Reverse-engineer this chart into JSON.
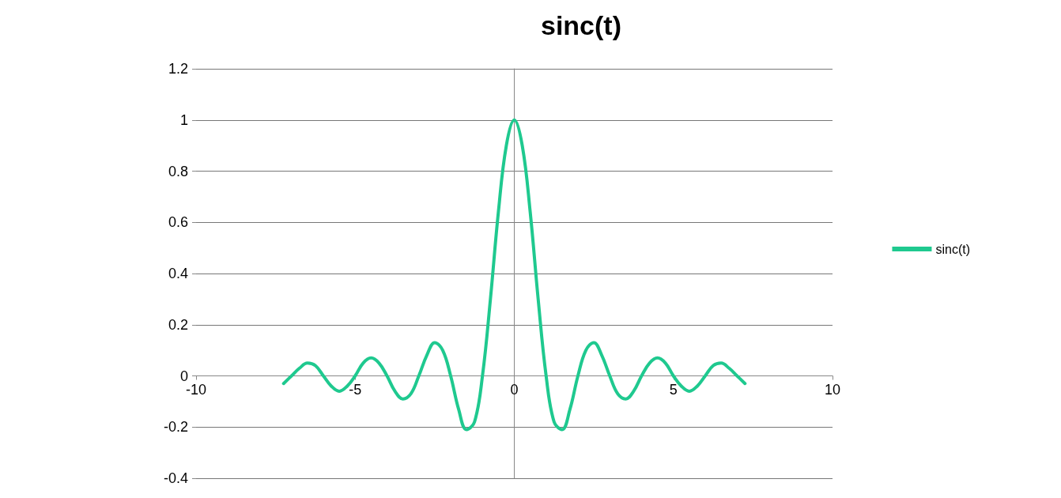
{
  "chart_data": {
    "type": "line",
    "title": "sinc(t)",
    "x": [
      -7.25,
      -7,
      -6.75,
      -6.5,
      -6.25,
      -6,
      -5.75,
      -5.5,
      -5.25,
      -5,
      -4.75,
      -4.5,
      -4.25,
      -4,
      -3.75,
      -3.5,
      -3.25,
      -3,
      -2.75,
      -2.5,
      -2.25,
      -2,
      -1.75,
      -1.5,
      -1.25,
      -1,
      -0.75,
      -0.5,
      -0.25,
      0,
      0.25,
      0.5,
      0.75,
      1,
      1.25,
      1.5,
      1.75,
      2,
      2.25,
      2.5,
      2.75,
      3,
      3.25,
      3.5,
      3.75,
      4,
      4.25,
      4.5,
      4.75,
      5,
      5.25,
      5.5,
      5.75,
      6,
      6.25,
      6.5,
      6.75,
      7,
      7.25
    ],
    "series": [
      {
        "name": "sinc(t)",
        "color": "#1fc98f",
        "values": [
          -0.03,
          0,
          0.03,
          0.05,
          0.04,
          0,
          -0.04,
          -0.06,
          -0.04,
          0,
          0.05,
          0.07,
          0.05,
          0,
          -0.06,
          -0.09,
          -0.07,
          0,
          0.08,
          0.13,
          0.1,
          0,
          -0.13,
          -0.21,
          -0.18,
          0,
          0.3,
          0.64,
          0.9,
          1,
          0.9,
          0.64,
          0.3,
          0,
          -0.18,
          -0.21,
          -0.13,
          0,
          0.1,
          0.13,
          0.08,
          0,
          -0.07,
          -0.09,
          -0.06,
          0,
          0.05,
          0.07,
          0.05,
          0,
          -0.04,
          -0.06,
          -0.04,
          0,
          0.04,
          0.05,
          0.03,
          0,
          -0.03
        ]
      }
    ],
    "xlim": [
      -10,
      10
    ],
    "xticks": [
      -10,
      -5,
      0,
      5,
      10
    ],
    "ylim": [
      -0.4,
      1.2
    ],
    "yticks": [
      -0.4,
      -0.2,
      0,
      0.2,
      0.4,
      0.6,
      0.8,
      1,
      1.2
    ],
    "grid": "y",
    "legend": "right",
    "marker": "none",
    "line_style": "solid"
  }
}
